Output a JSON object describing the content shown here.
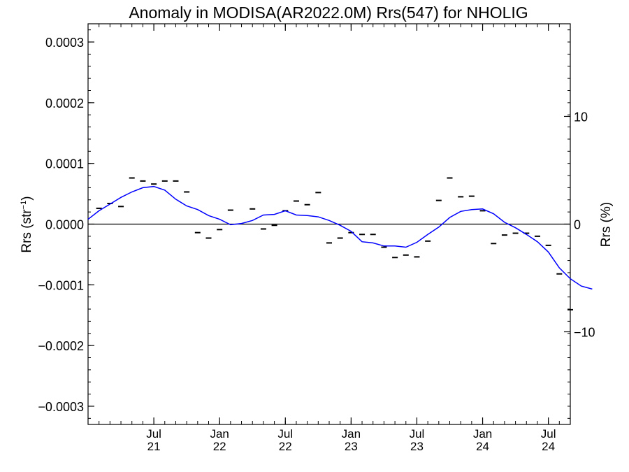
{
  "chart_data": {
    "type": "line",
    "title": "Anomaly in MODISA(AR2022.0M) Rrs(547) for NHOLIG",
    "ylabel_left": {
      "base": "Rrs (str",
      "sup": "−1",
      "close": ")"
    },
    "ylabel_right": "Rrs (%)",
    "x_axis": {
      "unit": "month",
      "range": [
        "2021-01",
        "2024-09"
      ],
      "tick_labels": [
        {
          "month": "Jul",
          "year": "21",
          "date": "2021-07"
        },
        {
          "month": "Jan",
          "year": "22",
          "date": "2022-01"
        },
        {
          "month": "Jul",
          "year": "22",
          "date": "2022-07"
        },
        {
          "month": "Jan",
          "year": "23",
          "date": "2023-01"
        },
        {
          "month": "Jul",
          "year": "23",
          "date": "2023-07"
        },
        {
          "month": "Jan",
          "year": "24",
          "date": "2024-01"
        },
        {
          "month": "Jul",
          "year": "24",
          "date": "2024-07"
        }
      ]
    },
    "y_left": {
      "range": [
        -0.00033,
        0.00033
      ],
      "ticks": [
        0.0003,
        0.0002,
        0.0001,
        0.0,
        -0.0001,
        -0.0002,
        -0.0003
      ],
      "tick_labels": [
        "0.0003",
        "0.0002",
        "0.0001",
        "0.0000",
        "−0.0001",
        "−0.0002",
        "−0.0003"
      ]
    },
    "y_right": {
      "range": [
        -18.6,
        18.6
      ],
      "ticks": [
        10,
        0,
        -10
      ],
      "tick_labels": [
        "10",
        "0",
        "−10"
      ]
    },
    "zero_line": true,
    "series": [
      {
        "kind": "monthly_anomaly",
        "style": "dash",
        "color": "#000000",
        "points": [
          [
            "2021-02",
            2.6e-05
          ],
          [
            "2021-03",
            3.4e-05
          ],
          [
            "2021-04",
            2.9e-05
          ],
          [
            "2021-05",
            7.6e-05
          ],
          [
            "2021-06",
            7.1e-05
          ],
          [
            "2021-07",
            6.6e-05
          ],
          [
            "2021-08",
            7.1e-05
          ],
          [
            "2021-09",
            7.1e-05
          ],
          [
            "2021-10",
            5.3e-05
          ],
          [
            "2021-11",
            -1.4e-05
          ],
          [
            "2021-12",
            -2.3e-05
          ],
          [
            "2022-01",
            -9e-06
          ],
          [
            "2022-02",
            2.3e-05
          ],
          [
            "2022-04",
            2.5e-05
          ],
          [
            "2022-05",
            -8e-06
          ],
          [
            "2022-06",
            -2e-06
          ],
          [
            "2022-07",
            2.2e-05
          ],
          [
            "2022-08",
            3.8e-05
          ],
          [
            "2022-09",
            3.2e-05
          ],
          [
            "2022-10",
            5.2e-05
          ],
          [
            "2022-11",
            -3.1e-05
          ],
          [
            "2022-12",
            -2.3e-05
          ],
          [
            "2023-01",
            -1.4e-05
          ],
          [
            "2023-02",
            -1.7e-05
          ],
          [
            "2023-03",
            -1.7e-05
          ],
          [
            "2023-04",
            -3.8e-05
          ],
          [
            "2023-05",
            -5.5e-05
          ],
          [
            "2023-06",
            -5.1e-05
          ],
          [
            "2023-07",
            -5.4e-05
          ],
          [
            "2023-08",
            -2.8e-05
          ],
          [
            "2023-09",
            3.9e-05
          ],
          [
            "2023-10",
            7.6e-05
          ],
          [
            "2023-11",
            4.5e-05
          ],
          [
            "2023-12",
            4.6e-05
          ],
          [
            "2024-01",
            2.2e-05
          ],
          [
            "2024-02",
            -3.2e-05
          ],
          [
            "2024-03",
            -1.8e-05
          ],
          [
            "2024-04",
            -1.5e-05
          ],
          [
            "2024-05",
            -1.5e-05
          ],
          [
            "2024-06",
            -2e-05
          ],
          [
            "2024-07",
            -3.5e-05
          ],
          [
            "2024-08",
            -8.2e-05
          ],
          [
            "2024-09",
            -0.000141
          ]
        ]
      },
      {
        "kind": "smoothed",
        "style": "line",
        "color": "#0000ff",
        "points": [
          [
            "2021-01",
            8e-06
          ],
          [
            "2021-02",
            2.2e-05
          ],
          [
            "2021-03",
            3.3e-05
          ],
          [
            "2021-04",
            4.4e-05
          ],
          [
            "2021-05",
            5.3e-05
          ],
          [
            "2021-06",
            6e-05
          ],
          [
            "2021-07",
            6.2e-05
          ],
          [
            "2021-08",
            5.6e-05
          ],
          [
            "2021-09",
            4.1e-05
          ],
          [
            "2021-10",
            3e-05
          ],
          [
            "2021-11",
            2.4e-05
          ],
          [
            "2021-12",
            1.4e-05
          ],
          [
            "2022-01",
            8e-06
          ],
          [
            "2022-02",
            -1e-06
          ],
          [
            "2022-03",
            1e-06
          ],
          [
            "2022-04",
            6e-06
          ],
          [
            "2022-05",
            1.5e-05
          ],
          [
            "2022-06",
            1.6e-05
          ],
          [
            "2022-07",
            2.2e-05
          ],
          [
            "2022-08",
            1.5e-05
          ],
          [
            "2022-09",
            1.4e-05
          ],
          [
            "2022-10",
            1.2e-05
          ],
          [
            "2022-11",
            6e-06
          ],
          [
            "2022-12",
            -2e-06
          ],
          [
            "2023-01",
            -1.2e-05
          ],
          [
            "2023-02",
            -2.9e-05
          ],
          [
            "2023-03",
            -3.1e-05
          ],
          [
            "2023-04",
            -3.6e-05
          ],
          [
            "2023-05",
            -3.6e-05
          ],
          [
            "2023-06",
            -3.8e-05
          ],
          [
            "2023-07",
            -3e-05
          ],
          [
            "2023-08",
            -1.7e-05
          ],
          [
            "2023-09",
            -5e-06
          ],
          [
            "2023-10",
            1.1e-05
          ],
          [
            "2023-11",
            2.1e-05
          ],
          [
            "2023-12",
            2.4e-05
          ],
          [
            "2024-01",
            2.5e-05
          ],
          [
            "2024-02",
            1.7e-05
          ],
          [
            "2024-03",
            3e-06
          ],
          [
            "2024-04",
            -6e-06
          ],
          [
            "2024-05",
            -1.7e-05
          ],
          [
            "2024-06",
            -2.9e-05
          ],
          [
            "2024-07",
            -4.6e-05
          ],
          [
            "2024-08",
            -7.2e-05
          ],
          [
            "2024-09",
            -9e-05
          ],
          [
            "2024-10",
            -0.000102
          ],
          [
            "2024-11",
            -0.000107
          ]
        ]
      }
    ],
    "grid": false,
    "legend": "none"
  }
}
